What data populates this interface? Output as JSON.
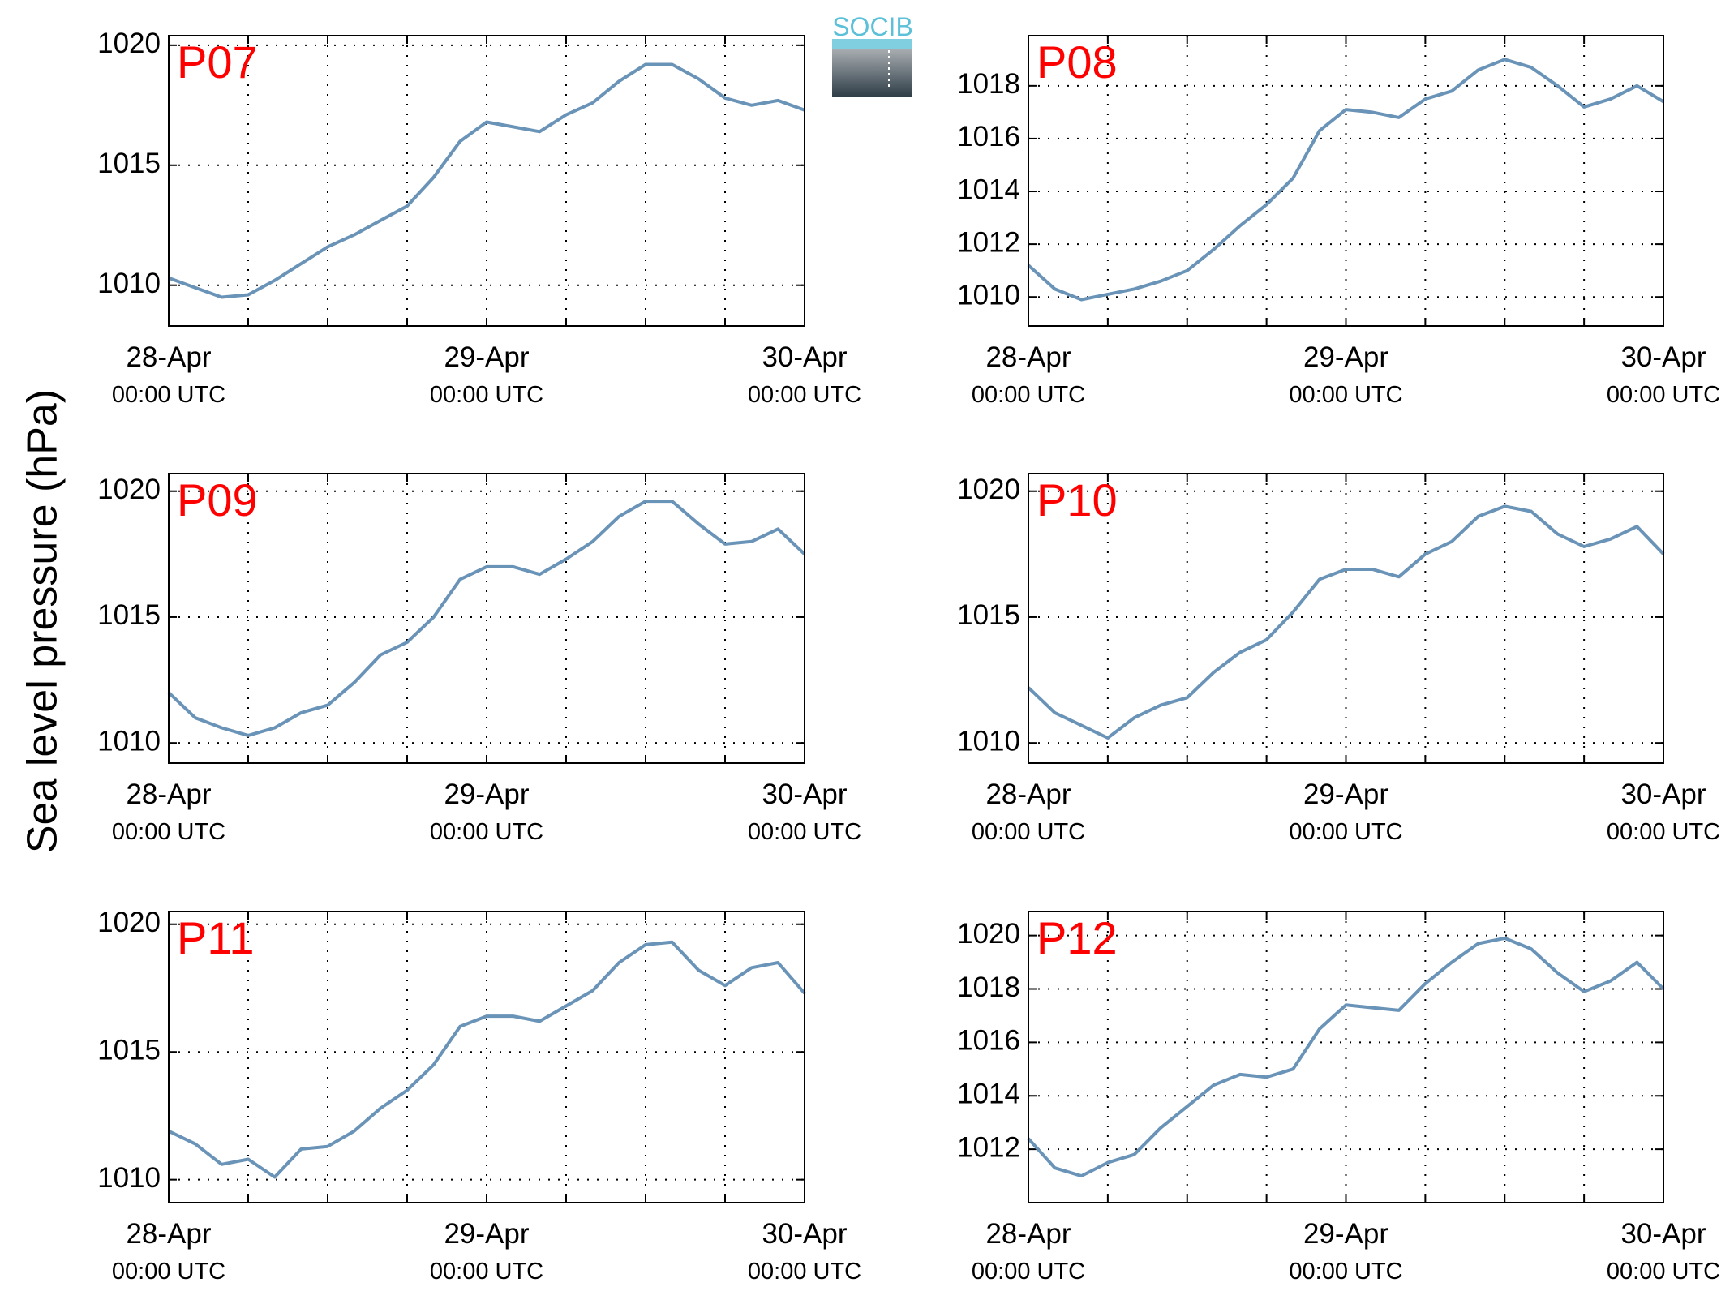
{
  "ylabel": "Sea level pressure (hPa)",
  "logo": "SOCIB",
  "chart_data": [
    {
      "type": "line",
      "title": "P07",
      "color": "#6a93b8",
      "grid": true,
      "x": [
        0,
        2,
        4,
        6,
        8,
        10,
        12,
        14,
        16,
        18,
        20,
        22,
        24,
        26,
        28,
        30,
        32,
        34,
        36,
        38,
        40,
        42,
        44,
        46,
        48
      ],
      "values": [
        1010.3,
        1009.9,
        1009.5,
        1009.6,
        1010.2,
        1010.9,
        1011.6,
        1012.1,
        1012.7,
        1013.3,
        1014.5,
        1016.0,
        1016.8,
        1016.6,
        1016.4,
        1017.1,
        1017.6,
        1018.5,
        1019.2,
        1019.2,
        1018.6,
        1017.8,
        1017.5,
        1017.7,
        1017.3
      ],
      "xlim": [
        0,
        48
      ],
      "ylim": [
        1008.3,
        1020.4
      ],
      "yticks": [
        1010,
        1015,
        1020
      ],
      "xticks": [
        {
          "value": 0,
          "label": [
            "28-Apr",
            "00:00 UTC"
          ]
        },
        {
          "value": 6,
          "label": null
        },
        {
          "value": 12,
          "label": null
        },
        {
          "value": 18,
          "label": null
        },
        {
          "value": 24,
          "label": [
            "29-Apr",
            "00:00 UTC"
          ]
        },
        {
          "value": 30,
          "label": null
        },
        {
          "value": 36,
          "label": null
        },
        {
          "value": 42,
          "label": null
        },
        {
          "value": 48,
          "label": [
            "30-Apr",
            "00:00 UTC"
          ]
        }
      ]
    },
    {
      "type": "line",
      "title": "P08",
      "color": "#6a93b8",
      "grid": true,
      "x": [
        0,
        2,
        4,
        6,
        8,
        10,
        12,
        14,
        16,
        18,
        20,
        22,
        24,
        26,
        28,
        30,
        32,
        34,
        36,
        38,
        40,
        42,
        44,
        46,
        48
      ],
      "values": [
        1011.2,
        1010.3,
        1009.9,
        1010.1,
        1010.3,
        1010.6,
        1011.0,
        1011.8,
        1012.7,
        1013.5,
        1014.5,
        1016.3,
        1017.1,
        1017.0,
        1016.8,
        1017.5,
        1017.8,
        1018.6,
        1019.0,
        1018.7,
        1018.0,
        1017.2,
        1017.5,
        1018.0,
        1017.4
      ],
      "xlim": [
        0,
        48
      ],
      "ylim": [
        1008.9,
        1019.9
      ],
      "yticks": [
        1010,
        1012,
        1014,
        1016,
        1018
      ],
      "xticks": [
        {
          "value": 0,
          "label": [
            "28-Apr",
            "00:00 UTC"
          ]
        },
        {
          "value": 6,
          "label": null
        },
        {
          "value": 12,
          "label": null
        },
        {
          "value": 18,
          "label": null
        },
        {
          "value": 24,
          "label": [
            "29-Apr",
            "00:00 UTC"
          ]
        },
        {
          "value": 30,
          "label": null
        },
        {
          "value": 36,
          "label": null
        },
        {
          "value": 42,
          "label": null
        },
        {
          "value": 48,
          "label": [
            "30-Apr",
            "00:00 UTC"
          ]
        }
      ]
    },
    {
      "type": "line",
      "title": "P09",
      "color": "#6a93b8",
      "grid": true,
      "x": [
        0,
        2,
        4,
        6,
        8,
        10,
        12,
        14,
        16,
        18,
        20,
        22,
        24,
        26,
        28,
        30,
        32,
        34,
        36,
        38,
        40,
        42,
        44,
        46,
        48
      ],
      "values": [
        1012.0,
        1011.0,
        1010.6,
        1010.3,
        1010.6,
        1011.2,
        1011.5,
        1012.4,
        1013.5,
        1014.0,
        1015.0,
        1016.5,
        1017.0,
        1017.0,
        1016.7,
        1017.3,
        1018.0,
        1019.0,
        1019.6,
        1019.6,
        1018.7,
        1017.9,
        1018.0,
        1018.5,
        1017.5
      ],
      "xlim": [
        0,
        48
      ],
      "ylim": [
        1009.2,
        1020.7
      ],
      "yticks": [
        1010,
        1015,
        1020
      ],
      "xticks": [
        {
          "value": 0,
          "label": [
            "28-Apr",
            "00:00 UTC"
          ]
        },
        {
          "value": 6,
          "label": null
        },
        {
          "value": 12,
          "label": null
        },
        {
          "value": 18,
          "label": null
        },
        {
          "value": 24,
          "label": [
            "29-Apr",
            "00:00 UTC"
          ]
        },
        {
          "value": 30,
          "label": null
        },
        {
          "value": 36,
          "label": null
        },
        {
          "value": 42,
          "label": null
        },
        {
          "value": 48,
          "label": [
            "30-Apr",
            "00:00 UTC"
          ]
        }
      ]
    },
    {
      "type": "line",
      "title": "P10",
      "color": "#6a93b8",
      "grid": true,
      "x": [
        0,
        2,
        4,
        6,
        8,
        10,
        12,
        14,
        16,
        18,
        20,
        22,
        24,
        26,
        28,
        30,
        32,
        34,
        36,
        38,
        40,
        42,
        44,
        46,
        48
      ],
      "values": [
        1012.2,
        1011.2,
        1010.7,
        1010.2,
        1011.0,
        1011.5,
        1011.8,
        1012.8,
        1013.6,
        1014.1,
        1015.2,
        1016.5,
        1016.9,
        1016.9,
        1016.6,
        1017.5,
        1018.0,
        1019.0,
        1019.4,
        1019.2,
        1018.3,
        1017.8,
        1018.1,
        1018.6,
        1017.5
      ],
      "xlim": [
        0,
        48
      ],
      "ylim": [
        1009.2,
        1020.7
      ],
      "yticks": [
        1010,
        1015,
        1020
      ],
      "xticks": [
        {
          "value": 0,
          "label": [
            "28-Apr",
            "00:00 UTC"
          ]
        },
        {
          "value": 6,
          "label": null
        },
        {
          "value": 12,
          "label": null
        },
        {
          "value": 18,
          "label": null
        },
        {
          "value": 24,
          "label": [
            "29-Apr",
            "00:00 UTC"
          ]
        },
        {
          "value": 30,
          "label": null
        },
        {
          "value": 36,
          "label": null
        },
        {
          "value": 42,
          "label": null
        },
        {
          "value": 48,
          "label": [
            "30-Apr",
            "00:00 UTC"
          ]
        }
      ]
    },
    {
      "type": "line",
      "title": "P11",
      "color": "#6a93b8",
      "grid": true,
      "x": [
        0,
        2,
        4,
        6,
        8,
        10,
        12,
        14,
        16,
        18,
        20,
        22,
        24,
        26,
        28,
        30,
        32,
        34,
        36,
        38,
        40,
        42,
        44,
        46,
        48
      ],
      "values": [
        1011.9,
        1011.4,
        1010.6,
        1010.8,
        1010.1,
        1011.2,
        1011.3,
        1011.9,
        1012.8,
        1013.5,
        1014.5,
        1016.0,
        1016.4,
        1016.4,
        1016.2,
        1016.8,
        1017.4,
        1018.5,
        1019.2,
        1019.3,
        1018.2,
        1017.6,
        1018.3,
        1018.5,
        1017.3
      ],
      "xlim": [
        0,
        48
      ],
      "ylim": [
        1009.1,
        1020.5
      ],
      "yticks": [
        1010,
        1015,
        1020
      ],
      "xticks": [
        {
          "value": 0,
          "label": [
            "28-Apr",
            "00:00 UTC"
          ]
        },
        {
          "value": 6,
          "label": null
        },
        {
          "value": 12,
          "label": null
        },
        {
          "value": 18,
          "label": null
        },
        {
          "value": 24,
          "label": [
            "29-Apr",
            "00:00 UTC"
          ]
        },
        {
          "value": 30,
          "label": null
        },
        {
          "value": 36,
          "label": null
        },
        {
          "value": 42,
          "label": null
        },
        {
          "value": 48,
          "label": [
            "30-Apr",
            "00:00 UTC"
          ]
        }
      ]
    },
    {
      "type": "line",
      "title": "P12",
      "color": "#6a93b8",
      "grid": true,
      "x": [
        0,
        2,
        4,
        6,
        8,
        10,
        12,
        14,
        16,
        18,
        20,
        22,
        24,
        26,
        28,
        30,
        32,
        34,
        36,
        38,
        40,
        42,
        44,
        46,
        48
      ],
      "values": [
        1012.4,
        1011.3,
        1011.0,
        1011.5,
        1011.8,
        1012.8,
        1013.6,
        1014.4,
        1014.8,
        1014.7,
        1015.0,
        1016.5,
        1017.4,
        1017.3,
        1017.2,
        1018.2,
        1019.0,
        1019.7,
        1019.9,
        1019.5,
        1018.6,
        1017.9,
        1018.3,
        1019.0,
        1018.0
      ],
      "xlim": [
        0,
        48
      ],
      "ylim": [
        1010.0,
        1020.9
      ],
      "yticks": [
        1012,
        1014,
        1016,
        1018,
        1020
      ],
      "xticks": [
        {
          "value": 0,
          "label": [
            "28-Apr",
            "00:00 UTC"
          ]
        },
        {
          "value": 6,
          "label": null
        },
        {
          "value": 12,
          "label": null
        },
        {
          "value": 18,
          "label": null
        },
        {
          "value": 24,
          "label": [
            "29-Apr",
            "00:00 UTC"
          ]
        },
        {
          "value": 30,
          "label": null
        },
        {
          "value": 36,
          "label": null
        },
        {
          "value": 42,
          "label": null
        },
        {
          "value": 48,
          "label": [
            "30-Apr",
            "00:00 UTC"
          ]
        }
      ]
    }
  ]
}
